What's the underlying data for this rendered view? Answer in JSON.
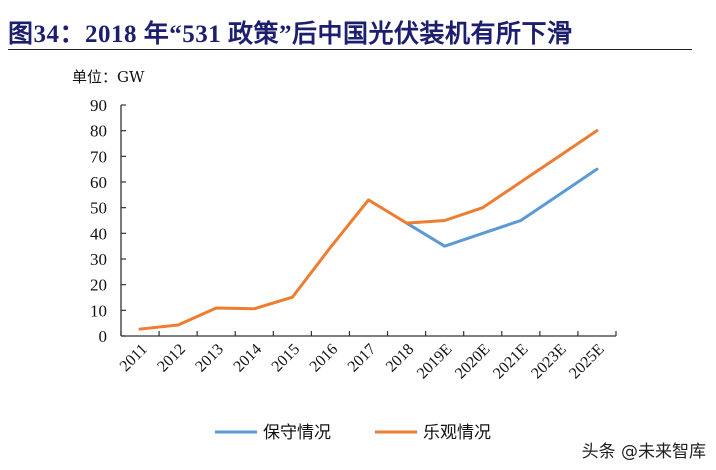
{
  "title": "图34：2018 年“531 政策”后中国光伏装机有所下滑",
  "unit_label": "单位：GW",
  "watermark": "头条 @未来智库",
  "chart_data": {
    "type": "line",
    "categories": [
      "2011",
      "2012",
      "2013",
      "2014",
      "2015",
      "2016",
      "2017",
      "2018",
      "2019E",
      "2020E",
      "2021E",
      "2023E",
      "2025E"
    ],
    "ylim": [
      0,
      90
    ],
    "yticks": [
      0,
      10,
      20,
      30,
      40,
      50,
      60,
      70,
      80,
      90
    ],
    "grid": false,
    "legend_position": "bottom",
    "series": [
      {
        "name": "保守情况",
        "color": "#5b9bd5",
        "values": [
          null,
          null,
          null,
          null,
          null,
          null,
          null,
          44,
          35,
          40,
          45,
          55,
          65
        ]
      },
      {
        "name": "乐观情况",
        "color": "#ed7d31",
        "values": [
          2.7,
          4.3,
          10.9,
          10.6,
          15.1,
          34.5,
          53,
          44,
          45,
          50,
          60,
          70,
          80
        ]
      }
    ]
  }
}
